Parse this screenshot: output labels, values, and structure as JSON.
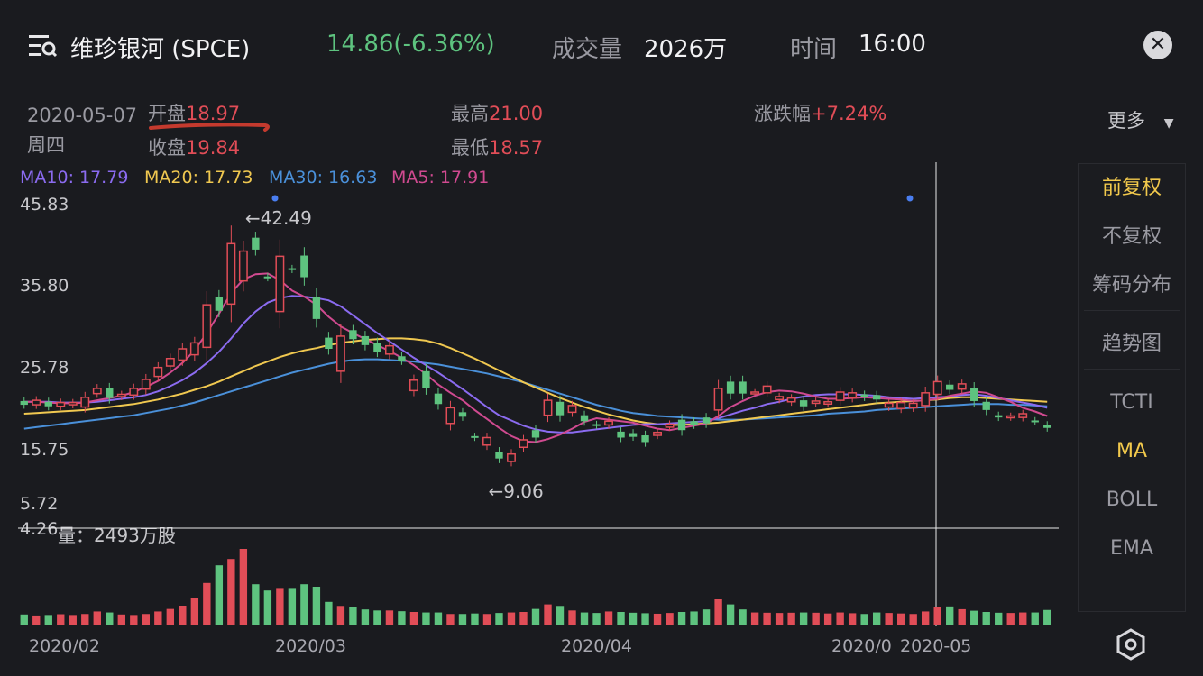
{
  "header": {
    "title": "维珍银河 (SPCE)",
    "price_change": "14.86(-6.36%)",
    "volume_label": "成交量",
    "volume_value": "2026万",
    "time_label": "时间",
    "time_value": "16:00"
  },
  "info": {
    "date": "2020-05-07",
    "weekday": "周四",
    "open_label": "开盘",
    "open_value": "18.97",
    "close_label": "收盘",
    "close_value": "19.84",
    "high_label": "最高",
    "high_value": "21.00",
    "low_label": "最低",
    "low_value": "18.57",
    "chg_label": "涨跌幅",
    "chg_value": "+7.24%",
    "more_label": "更多"
  },
  "ma_legend": {
    "ma10": "MA10: 17.79",
    "ma20": "MA20: 17.73",
    "ma30": "MA30: 16.63",
    "ma5": "MA5: 17.91"
  },
  "sidebar": {
    "items": [
      {
        "label": "前复权",
        "active": true
      },
      {
        "label": "不复权",
        "active": false
      },
      {
        "label": "筹码分布",
        "active": false
      },
      {
        "label": "趋势图",
        "active": false
      },
      {
        "label": "TCTI",
        "active": false
      },
      {
        "label": "MA",
        "active": true
      },
      {
        "label": "BOLL",
        "active": false
      },
      {
        "label": "EMA",
        "active": false
      }
    ]
  },
  "volume_panel": {
    "label": "量：2493万股"
  },
  "annotations": {
    "high": "←42.49",
    "low": "←9.06"
  },
  "cursor_date": "2020-05",
  "colors": {
    "up": "#e14d57",
    "down": "#5ec37f",
    "ma10": "#8b6bf0",
    "ma20": "#f0c850",
    "ma30": "#4a90d9",
    "ma5": "#d04a90",
    "accent": "#f2c94c"
  },
  "chart_data": {
    "type": "candlestick",
    "y_ticks": [
      "45.83",
      "35.80",
      "25.78",
      "15.75",
      "5.72",
      "4.26"
    ],
    "x_ticks": [
      "2020/02",
      "2020/03",
      "2020/04",
      "2020/0"
    ],
    "ylim": [
      4.26,
      45.83
    ],
    "candles": [
      {
        "o": 19.5,
        "c": 19.0
      },
      {
        "o": 19.0,
        "c": 19.6
      },
      {
        "o": 19.4,
        "c": 18.8
      },
      {
        "o": 18.8,
        "c": 19.3
      },
      {
        "o": 19.0,
        "c": 19.3
      },
      {
        "o": 18.7,
        "c": 20.0
      },
      {
        "o": 20.5,
        "c": 21.2
      },
      {
        "o": 21.2,
        "c": 19.9
      },
      {
        "o": 20.1,
        "c": 20.4
      },
      {
        "o": 20.3,
        "c": 21.2
      },
      {
        "o": 21.1,
        "c": 22.4
      },
      {
        "o": 22.8,
        "c": 24.0
      },
      {
        "o": 24.2,
        "c": 25.2
      },
      {
        "o": 25.0,
        "c": 26.5
      },
      {
        "o": 25.7,
        "c": 27.3
      },
      {
        "o": 26.7,
        "c": 32.4
      },
      {
        "o": 33.5,
        "c": 31.6
      },
      {
        "o": 32.5,
        "c": 40.6
      },
      {
        "o": 35.6,
        "c": 39.6
      },
      {
        "o": 41.4,
        "c": 39.8
      },
      {
        "o": 36.2,
        "c": 36.0
      },
      {
        "o": 31.5,
        "c": 38.9
      },
      {
        "o": 37.3,
        "c": 37.1
      },
      {
        "o": 39.0,
        "c": 36.1
      },
      {
        "o": 33.5,
        "c": 30.5
      },
      {
        "o": 28.0,
        "c": 26.5
      },
      {
        "o": 23.5,
        "c": 28.2
      },
      {
        "o": 29.0,
        "c": 27.8
      },
      {
        "o": 28.2,
        "c": 27.0
      },
      {
        "o": 27.3,
        "c": 26.1
      },
      {
        "o": 25.8,
        "c": 26.9
      },
      {
        "o": 25.5,
        "c": 24.9
      },
      {
        "o": 20.9,
        "c": 22.3
      },
      {
        "o": 23.5,
        "c": 21.3
      },
      {
        "o": 20.5,
        "c": 19.1
      },
      {
        "o": 16.5,
        "c": 18.6
      },
      {
        "o": 18.0,
        "c": 17.4
      },
      {
        "o": 14.8,
        "c": 14.6
      },
      {
        "o": 13.6,
        "c": 14.6
      },
      {
        "o": 12.7,
        "c": 11.8
      },
      {
        "o": 11.4,
        "c": 12.4
      },
      {
        "o": 13.3,
        "c": 14.3
      },
      {
        "o": 15.6,
        "c": 14.6
      },
      {
        "o": 17.6,
        "c": 19.6
      },
      {
        "o": 19.4,
        "c": 17.6
      },
      {
        "o": 18.0,
        "c": 18.9
      },
      {
        "o": 17.6,
        "c": 16.8
      },
      {
        "o": 16.4,
        "c": 16.2
      },
      {
        "o": 16.3,
        "c": 16.8
      },
      {
        "o": 15.4,
        "c": 14.6
      },
      {
        "o": 15.2,
        "c": 14.7
      },
      {
        "o": 14.9,
        "c": 14.0
      },
      {
        "o": 14.9,
        "c": 15.3
      },
      {
        "o": 16.0,
        "c": 16.4
      },
      {
        "o": 17.0,
        "c": 15.6
      },
      {
        "o": 16.8,
        "c": 16.3
      },
      {
        "o": 17.3,
        "c": 16.5
      },
      {
        "o": 18.3,
        "c": 21.2
      },
      {
        "o": 22.1,
        "c": 20.5
      },
      {
        "o": 22.1,
        "c": 20.5
      },
      {
        "o": 20.7,
        "c": 20.7
      },
      {
        "o": 20.6,
        "c": 21.5
      },
      {
        "o": 19.7,
        "c": 20.1
      },
      {
        "o": 19.4,
        "c": 19.9
      },
      {
        "o": 19.6,
        "c": 18.8
      },
      {
        "o": 19.2,
        "c": 19.5
      },
      {
        "o": 19.1,
        "c": 19.4
      },
      {
        "o": 19.6,
        "c": 20.7
      },
      {
        "o": 19.9,
        "c": 20.6
      },
      {
        "o": 20.4,
        "c": 20.0
      },
      {
        "o": 20.3,
        "c": 19.7
      },
      {
        "o": 18.7,
        "c": 19.2
      },
      {
        "o": 18.5,
        "c": 19.3
      },
      {
        "o": 18.6,
        "c": 19.2
      },
      {
        "o": 18.9,
        "c": 20.6
      },
      {
        "o": 20.4,
        "c": 22.1
      },
      {
        "o": 21.7,
        "c": 21.0
      },
      {
        "o": 21.1,
        "c": 21.8
      },
      {
        "o": 21.2,
        "c": 19.5
      },
      {
        "o": 19.4,
        "c": 18.3
      },
      {
        "o": 17.6,
        "c": 17.3
      },
      {
        "o": 17.3,
        "c": 17.5
      },
      {
        "o": 17.3,
        "c": 17.8
      },
      {
        "o": 16.9,
        "c": 16.7
      },
      {
        "o": 16.3,
        "c": 15.9
      }
    ],
    "ma5": [
      19.4,
      19.4,
      19.3,
      19.2,
      19.2,
      19.3,
      19.6,
      19.9,
      20.2,
      20.7,
      21.4,
      22.2,
      23.3,
      24.6,
      26.3,
      28.6,
      31.2,
      34.0,
      35.8,
      36.5,
      36.6,
      35.7,
      34.3,
      33.5,
      32.4,
      30.8,
      29.5,
      28.6,
      27.8,
      27.0,
      26.2,
      25.3,
      24.3,
      23.1,
      21.7,
      20.6,
      19.6,
      18.3,
      17.1,
      15.9,
      14.8,
      14.1,
      14.0,
      14.4,
      15.0,
      15.8,
      16.7,
      17.2,
      17.0,
      16.8,
      16.6,
      16.2,
      15.8,
      15.6,
      15.9,
      16.2,
      16.5,
      17.5,
      18.7,
      19.5,
      20.2,
      20.7,
      20.9,
      20.8,
      20.5,
      20.1,
      19.8,
      19.8,
      19.9,
      20.0,
      19.9,
      19.8,
      19.7,
      19.5,
      19.6,
      19.8,
      20.2,
      20.5,
      20.8,
      20.6,
      20.0,
      19.4,
      18.6,
      18.1,
      17.5
    ],
    "ma10": [
      19.4,
      19.4,
      19.4,
      19.3,
      19.3,
      19.3,
      19.4,
      19.6,
      19.8,
      20.0,
      20.3,
      20.8,
      21.5,
      22.3,
      23.3,
      24.6,
      26.1,
      27.9,
      29.9,
      31.5,
      32.7,
      33.3,
      33.6,
      33.5,
      33.3,
      33.0,
      32.2,
      31.0,
      29.8,
      28.6,
      27.5,
      26.4,
      25.3,
      24.3,
      23.3,
      22.2,
      21.1,
      19.9,
      18.7,
      17.6,
      16.9,
      16.2,
      15.7,
      15.4,
      15.3,
      15.3,
      15.5,
      15.7,
      15.9,
      16.1,
      16.3,
      16.4,
      16.4,
      16.5,
      16.6,
      16.7,
      16.8,
      17.2,
      17.7,
      18.2,
      18.6,
      19.1,
      19.4,
      19.8,
      20.1,
      20.3,
      20.4,
      20.4,
      20.4,
      20.3,
      20.2,
      20.0,
      19.9,
      19.8,
      19.9,
      20.0,
      20.1,
      20.3,
      20.4,
      20.2,
      19.9,
      19.6,
      19.3,
      19.0,
      18.6
    ],
    "ma20": [
      17.8,
      17.9,
      18.0,
      18.1,
      18.2,
      18.3,
      18.5,
      18.7,
      18.9,
      19.1,
      19.4,
      19.7,
      20.1,
      20.5,
      21.0,
      21.5,
      22.1,
      22.8,
      23.5,
      24.2,
      24.8,
      25.4,
      25.9,
      26.3,
      26.6,
      27.0,
      27.3,
      27.5,
      27.7,
      27.8,
      27.9,
      27.9,
      27.8,
      27.6,
      27.2,
      26.6,
      25.9,
      25.2,
      24.4,
      23.6,
      22.8,
      22.0,
      21.3,
      20.6,
      19.9,
      19.3,
      18.7,
      18.2,
      17.7,
      17.3,
      16.9,
      16.6,
      16.4,
      16.3,
      16.3,
      16.4,
      16.5,
      16.6,
      16.8,
      17.0,
      17.2,
      17.4,
      17.6,
      17.8,
      18.0,
      18.2,
      18.4,
      18.6,
      18.8,
      19.0,
      19.2,
      19.3,
      19.4,
      19.5,
      19.6,
      19.7,
      19.9,
      20.0,
      20.0,
      19.9,
      19.8,
      19.7,
      19.6,
      19.5,
      19.4
    ],
    "ma30": [
      15.8,
      16.0,
      16.2,
      16.4,
      16.6,
      16.8,
      17.0,
      17.2,
      17.4,
      17.6,
      17.9,
      18.2,
      18.5,
      18.9,
      19.3,
      19.8,
      20.3,
      20.8,
      21.3,
      21.8,
      22.3,
      22.8,
      23.3,
      23.7,
      24.1,
      24.5,
      24.8,
      25.0,
      25.1,
      25.1,
      25.0,
      24.9,
      24.8,
      24.6,
      24.4,
      24.1,
      23.8,
      23.5,
      23.2,
      22.8,
      22.4,
      22.0,
      21.5,
      21.0,
      20.5,
      20.0,
      19.5,
      19.0,
      18.6,
      18.2,
      17.9,
      17.7,
      17.5,
      17.4,
      17.3,
      17.2,
      17.1,
      17.0,
      17.0,
      17.0,
      17.1,
      17.2,
      17.3,
      17.4,
      17.5,
      17.6,
      17.8,
      17.9,
      18.0,
      18.1,
      18.3,
      18.4,
      18.5,
      18.6,
      18.7,
      18.8,
      18.9,
      19.0,
      19.1,
      19.1,
      19.1,
      19.0,
      19.0,
      18.9,
      18.8
    ],
    "volumes_wan": [
      400,
      360,
      380,
      410,
      380,
      420,
      520,
      480,
      400,
      380,
      420,
      520,
      620,
      750,
      1050,
      1650,
      2350,
      2600,
      3000,
      1600,
      1350,
      1450,
      1450,
      1600,
      1500,
      900,
      740,
      700,
      600,
      560,
      560,
      530,
      500,
      480,
      480,
      420,
      420,
      440,
      420,
      460,
      480,
      500,
      620,
      800,
      740,
      560,
      480,
      460,
      520,
      500,
      470,
      450,
      430,
      460,
      500,
      520,
      600,
      1000,
      800,
      600,
      480,
      470,
      460,
      470,
      480,
      470,
      440,
      480,
      450,
      420,
      480,
      460,
      440,
      420,
      520,
      700,
      720,
      610,
      550,
      500,
      470,
      460,
      480,
      480,
      580
    ]
  }
}
